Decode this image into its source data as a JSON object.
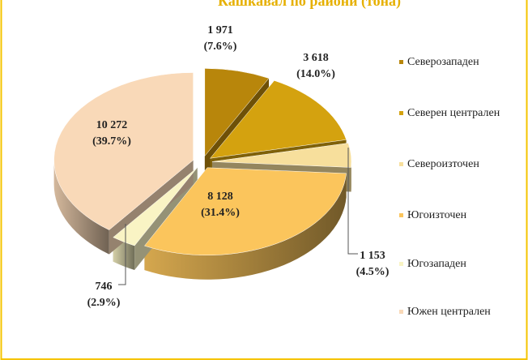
{
  "chart_data": {
    "type": "pie3d",
    "title": "Кашкавал по райони (тона)",
    "categories": [
      "Северозападен",
      "Северен централен",
      "Североизточен",
      "Югоизточен",
      "Югозападен",
      "Южен централен"
    ],
    "values": [
      1971,
      3618,
      1153,
      8128,
      746,
      10272
    ],
    "value_labels": [
      "1 971",
      "3 618",
      "1 153",
      "8 128",
      "746",
      "10 272"
    ],
    "shares": [
      7.6,
      14.0,
      4.5,
      31.4,
      2.9,
      39.7
    ],
    "share_labels": [
      "(7.6%)",
      "(14.0%)",
      "(4.5%)",
      "(31.4%)",
      "(2.9%)",
      "(39.7%)"
    ],
    "colors": [
      "#b8860b",
      "#d4a20f",
      "#f7df9c",
      "#fbc55c",
      "#f9f4c4",
      "#f9d9b8"
    ],
    "legend": "right"
  }
}
